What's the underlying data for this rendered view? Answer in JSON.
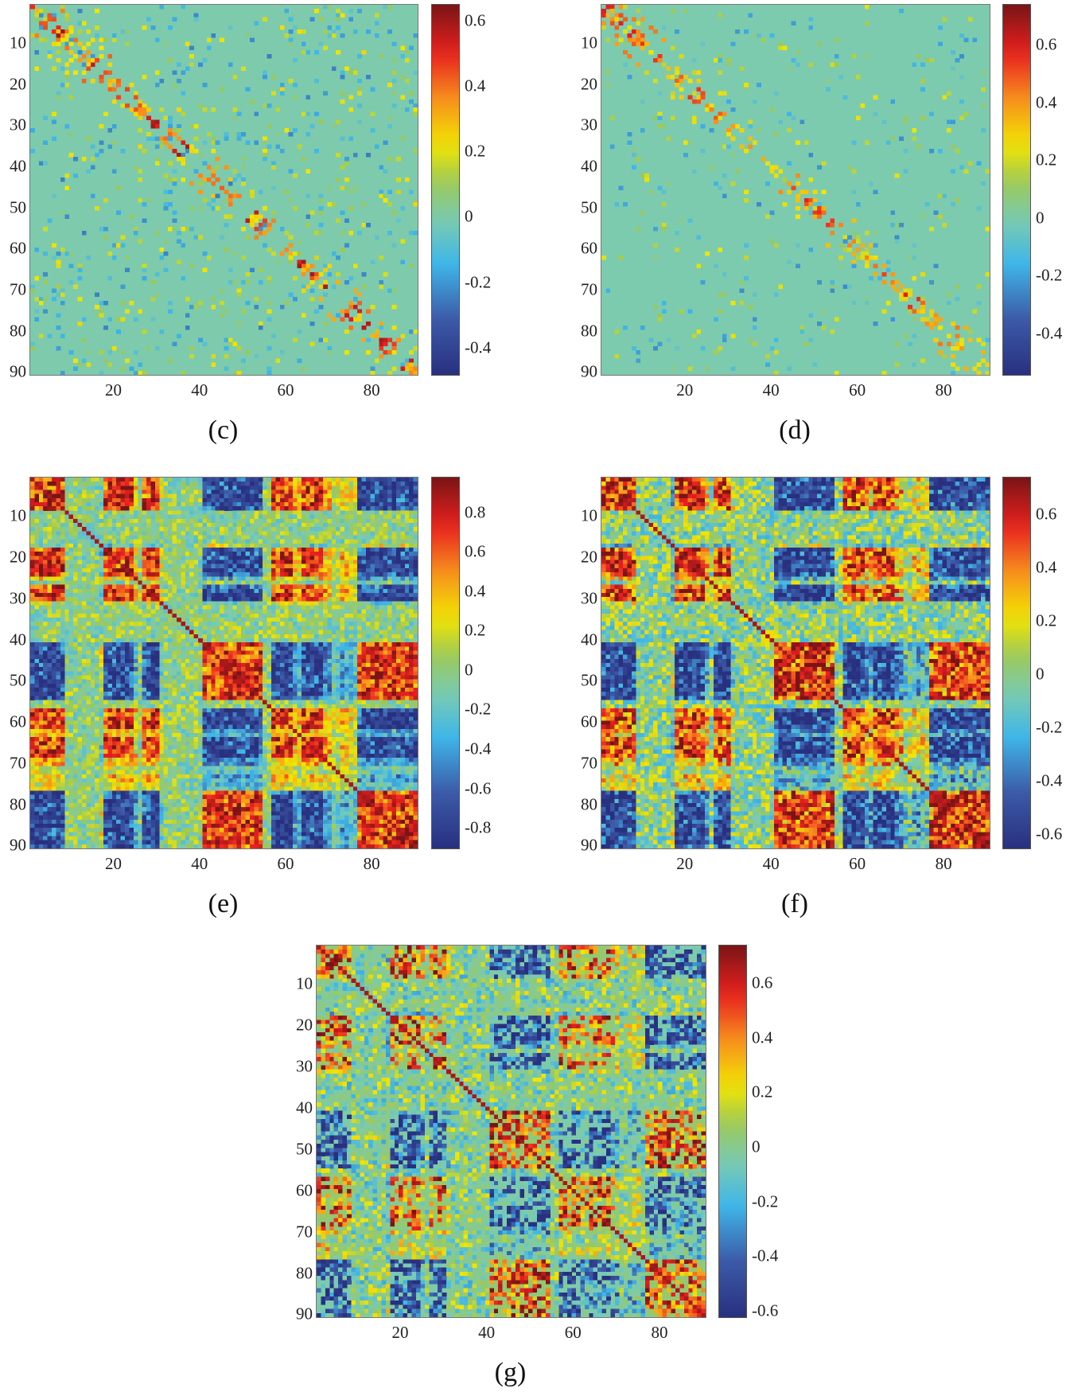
{
  "chart_data": [
    {
      "type": "heatmap",
      "label": "(c)",
      "size": [
        90,
        90
      ],
      "clim": [
        -0.48,
        0.65
      ],
      "yticks": [
        10,
        20,
        30,
        40,
        50,
        60,
        70,
        80,
        90
      ],
      "xticks": [
        20,
        40,
        60,
        80
      ],
      "colorbar_ticks": [
        0.6,
        0.4,
        0.2,
        0,
        -0.2,
        -0.4
      ],
      "colorbar_tick_labels": [
        "0.6",
        "0.4",
        "0.2",
        "0",
        "-0.2",
        "-0.4"
      ]
    },
    {
      "type": "heatmap",
      "label": "(d)",
      "size": [
        90,
        90
      ],
      "clim": [
        -0.54,
        0.74
      ],
      "yticks": [
        10,
        20,
        30,
        40,
        50,
        60,
        70,
        80,
        90
      ],
      "xticks": [
        20,
        40,
        60,
        80
      ],
      "colorbar_ticks": [
        0.6,
        0.4,
        0.2,
        0,
        -0.2,
        -0.4
      ],
      "colorbar_tick_labels": [
        "0.6",
        "0.4",
        "0.2",
        "0",
        "-0.2",
        "-0.4"
      ]
    },
    {
      "type": "heatmap",
      "label": "(e)",
      "size": [
        90,
        90
      ],
      "clim": [
        -0.9,
        0.98
      ],
      "yticks": [
        10,
        20,
        30,
        40,
        50,
        60,
        70,
        80,
        90
      ],
      "xticks": [
        20,
        40,
        60,
        80
      ],
      "colorbar_ticks": [
        0.8,
        0.6,
        0.4,
        0.2,
        0,
        -0.2,
        -0.4,
        -0.6,
        -0.8
      ],
      "colorbar_tick_labels": [
        "0.8",
        "0.6",
        "0.4",
        "0.2",
        "0",
        "-0.2",
        "-0.4",
        "-0.6",
        "-0.8"
      ]
    },
    {
      "type": "heatmap",
      "label": "(f)",
      "size": [
        90,
        90
      ],
      "clim": [
        -0.65,
        0.74
      ],
      "yticks": [
        10,
        20,
        30,
        40,
        50,
        60,
        70,
        80,
        90
      ],
      "xticks": [
        20,
        40,
        60,
        80
      ],
      "colorbar_ticks": [
        0.6,
        0.4,
        0.2,
        0,
        -0.2,
        -0.4,
        -0.6
      ],
      "colorbar_tick_labels": [
        "0.6",
        "0.4",
        "0.2",
        "0",
        "-0.2",
        "-0.4",
        "-0.6"
      ]
    },
    {
      "type": "heatmap",
      "label": "(g)",
      "size": [
        90,
        90
      ],
      "clim": [
        -0.62,
        0.74
      ],
      "yticks": [
        10,
        20,
        30,
        40,
        50,
        60,
        70,
        80,
        90
      ],
      "xticks": [
        20,
        40,
        60,
        80
      ],
      "colorbar_ticks": [
        0.6,
        0.4,
        0.2,
        0,
        -0.2,
        -0.4,
        -0.6
      ],
      "colorbar_tick_labels": [
        "0.6",
        "0.4",
        "0.2",
        "0",
        "-0.2",
        "-0.4",
        "-0.6"
      ]
    }
  ],
  "colormap": [
    "#28307f",
    "#3c5aa8",
    "#3fb6e8",
    "#7ccbb0",
    "#9bc85a",
    "#f2e600",
    "#f7941d",
    "#e8201f",
    "#7a1416"
  ]
}
